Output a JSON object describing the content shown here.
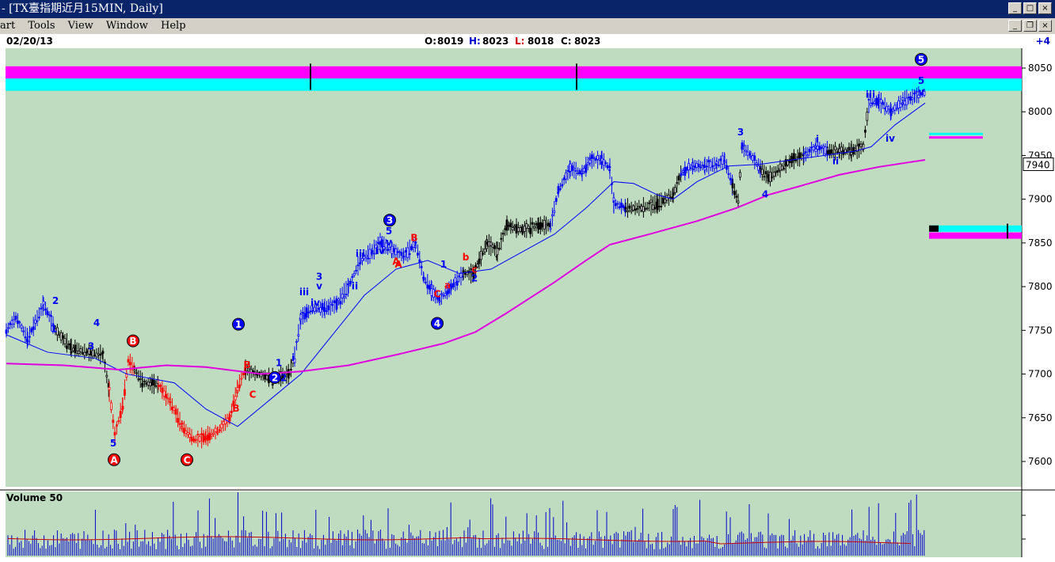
{
  "window": {
    "title": "- [TX臺指期近月15MIN, Daily]",
    "title_prefix": "‾"
  },
  "menu": {
    "items": [
      "art",
      "Tools",
      "View",
      "Window",
      "Help"
    ]
  },
  "infobar": {
    "date": "02/20/13",
    "open_label": "O:",
    "open": "8019",
    "high_label": "H:",
    "high": "8023",
    "low_label": "L:",
    "low": "8018",
    "close_label": "C:",
    "close": "8023",
    "offset": "+4"
  },
  "price_axis": {
    "ticks": [
      "8050",
      "8000",
      "7950",
      "7900",
      "7850",
      "7800",
      "7750",
      "7700",
      "7650",
      "7600"
    ],
    "current_price": "7940"
  },
  "volume_panel": {
    "label": "Volume 50"
  },
  "colors": {
    "chart_bg": "#c0dcc0",
    "magenta": "#ff00ff",
    "cyan": "#00ffff",
    "blue_wave": "#0000ff",
    "red_wave": "#ff0000",
    "black_wave": "#000000",
    "ma_short": "#0000ff",
    "ma_long": "#e000e0",
    "volume_bar": "#0000cc",
    "volume_avg": "#cc0000"
  },
  "chart_data": {
    "type": "candlestick",
    "y_range": [
      7580,
      8070
    ],
    "wave_labels": [
      {
        "text": "2",
        "color": "blue"
      },
      {
        "text": "1",
        "color": "blue"
      },
      {
        "text": "4",
        "color": "blue"
      },
      {
        "text": "3",
        "color": "blue"
      },
      {
        "text": "5",
        "color": "blue"
      },
      {
        "text": "B",
        "color": "red"
      },
      {
        "text": "C",
        "color": "red"
      },
      {
        "text": "B",
        "color": "red"
      },
      {
        "text": "A",
        "color": "red"
      },
      {
        "text": "C",
        "color": "red"
      },
      {
        "text": "1",
        "color": "blue"
      },
      {
        "text": "2",
        "color": "blue"
      },
      {
        "text": "i",
        "color": "blue"
      },
      {
        "text": "ii",
        "color": "blue"
      },
      {
        "text": "iii",
        "color": "blue"
      },
      {
        "text": "iv",
        "color": "blue"
      },
      {
        "text": "v",
        "color": "blue"
      },
      {
        "text": "3",
        "color": "blue"
      },
      {
        "text": "ii",
        "color": "blue"
      },
      {
        "text": "iii",
        "color": "blue"
      },
      {
        "text": "iv",
        "color": "blue"
      },
      {
        "text": "v",
        "color": "blue"
      },
      {
        "text": "5",
        "color": "blue"
      },
      {
        "text": "B",
        "color": "red"
      },
      {
        "text": "A",
        "color": "red"
      },
      {
        "text": "C",
        "color": "red"
      },
      {
        "text": "a",
        "color": "red"
      },
      {
        "text": "b",
        "color": "red"
      },
      {
        "text": "c",
        "color": "red"
      },
      {
        "text": "1",
        "color": "blue"
      },
      {
        "text": "2",
        "color": "blue"
      },
      {
        "text": "3",
        "color": "blue"
      },
      {
        "text": "4",
        "color": "blue"
      },
      {
        "text": "i",
        "color": "blue"
      },
      {
        "text": "ii",
        "color": "blue"
      },
      {
        "text": "iii",
        "color": "blue"
      },
      {
        "text": "iv",
        "color": "blue"
      },
      {
        "text": "v",
        "color": "blue"
      },
      {
        "text": "5",
        "color": "blue"
      }
    ],
    "circled_labels": [
      {
        "text": "A",
        "color": "red"
      },
      {
        "text": "B",
        "color": "red"
      },
      {
        "text": "C",
        "color": "red"
      },
      {
        "text": "1",
        "color": "blue"
      },
      {
        "text": "2",
        "color": "blue"
      },
      {
        "text": "3",
        "color": "blue"
      },
      {
        "text": "4",
        "color": "blue"
      },
      {
        "text": "5",
        "color": "blue"
      }
    ]
  }
}
